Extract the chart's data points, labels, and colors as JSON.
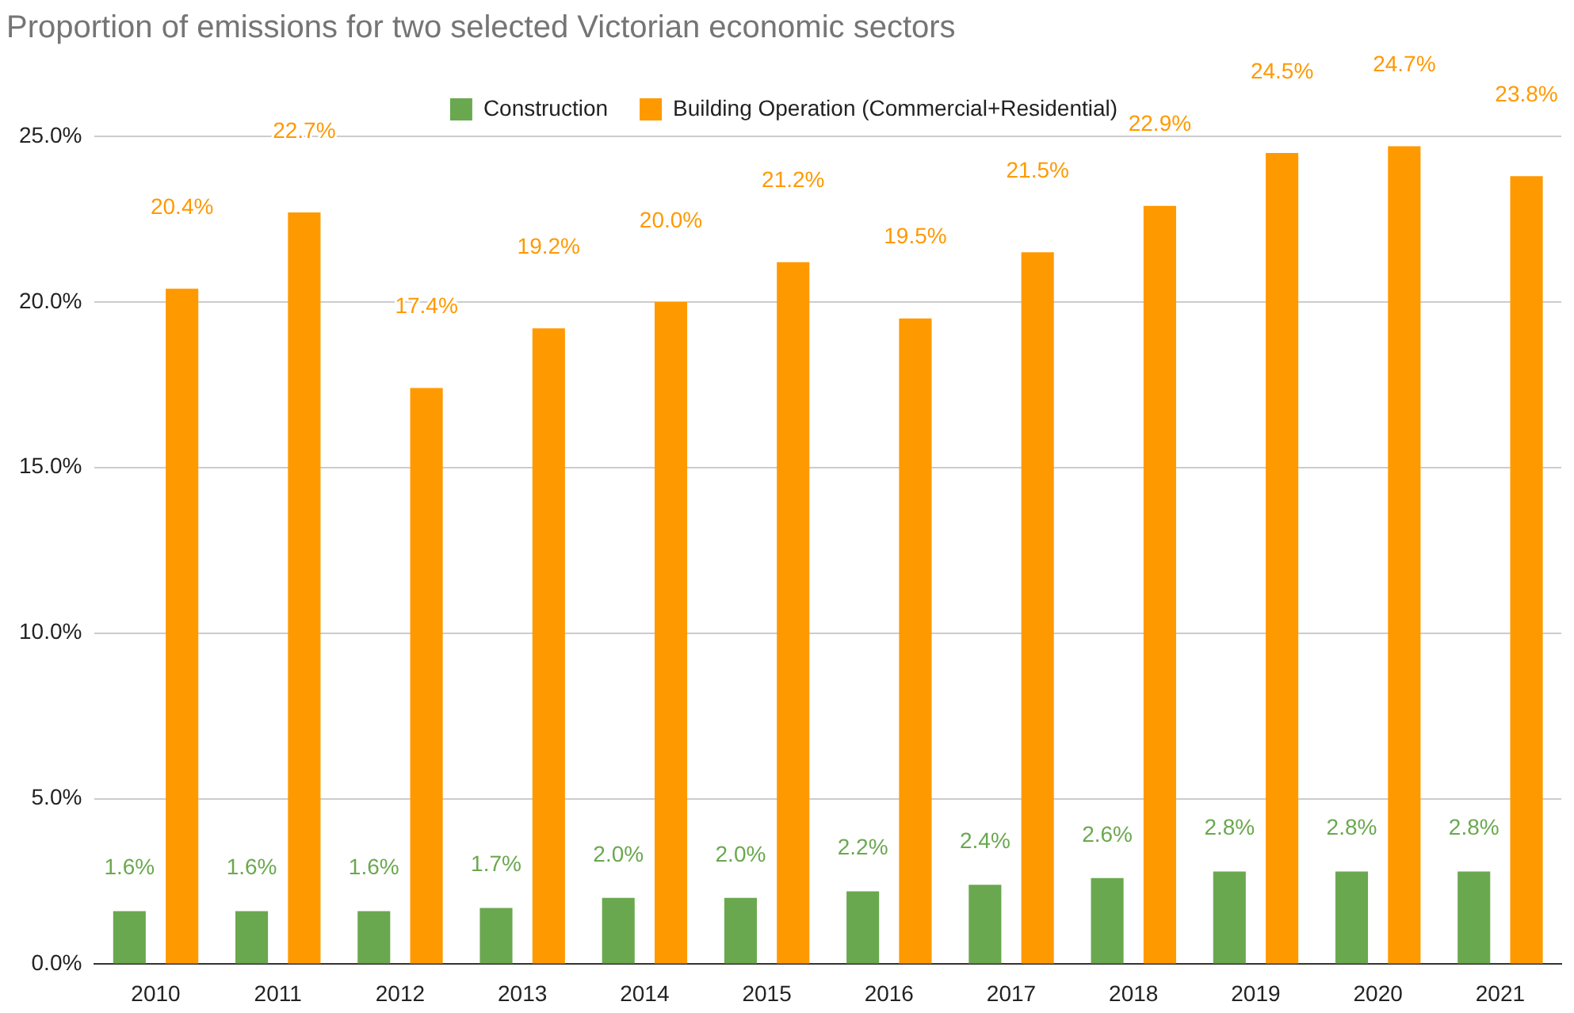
{
  "chart_data": {
    "type": "bar",
    "title": "Proportion of emissions for two selected Victorian economic sectors",
    "categories": [
      "2010",
      "2011",
      "2012",
      "2013",
      "2014",
      "2015",
      "2016",
      "2017",
      "2018",
      "2019",
      "2020",
      "2021"
    ],
    "series": [
      {
        "name": "Construction",
        "color": "#6aa84f",
        "values": [
          1.6,
          1.6,
          1.6,
          1.7,
          2.0,
          2.0,
          2.2,
          2.4,
          2.6,
          2.8,
          2.8,
          2.8
        ],
        "value_labels": [
          "1.6%",
          "1.6%",
          "1.6%",
          "1.7%",
          "2.0%",
          "2.0%",
          "2.2%",
          "2.4%",
          "2.6%",
          "2.8%",
          "2.8%",
          "2.8%"
        ]
      },
      {
        "name": "Building Operation (Commercial+Residential)",
        "color": "#ff9900",
        "values": [
          20.4,
          22.7,
          17.4,
          19.2,
          20.0,
          21.2,
          19.5,
          21.5,
          22.9,
          24.5,
          24.7,
          23.8
        ],
        "value_labels": [
          "20.4%",
          "22.7%",
          "17.4%",
          "19.2%",
          "20.0%",
          "21.2%",
          "19.5%",
          "21.5%",
          "22.9%",
          "24.5%",
          "24.7%",
          "23.8%"
        ]
      }
    ],
    "ylim": [
      0,
      25
    ],
    "yticks": [
      {
        "value": 0,
        "label": "0.0%"
      },
      {
        "value": 5,
        "label": "5.0%"
      },
      {
        "value": 10,
        "label": "10.0%"
      },
      {
        "value": 15,
        "label": "15.0%"
      },
      {
        "value": 20,
        "label": "20.0%"
      },
      {
        "value": 25,
        "label": "25.0%"
      }
    ],
    "grid": "y",
    "legend": "top"
  }
}
